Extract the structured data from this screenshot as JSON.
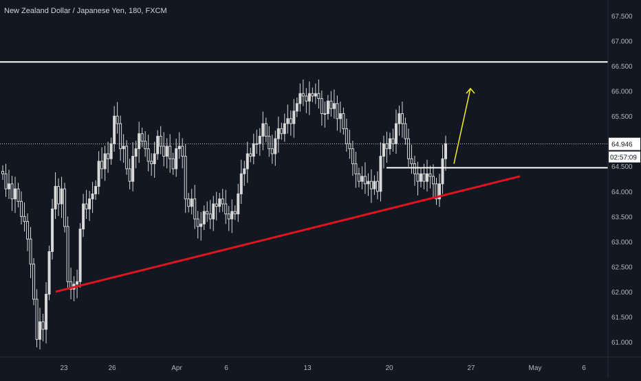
{
  "header": {
    "title": "New Zealand Dollar / Japanese Yen, 180, FXCM"
  },
  "theme": {
    "background": "#131722",
    "candle_color": "#d8d8d8",
    "axis_text": "#b2b5be",
    "support_line_color": "#e0141e",
    "target_arrow_color": "#f2ef2a",
    "level_line_color": "#ffffff"
  },
  "chart_data": {
    "type": "candlestick",
    "title": "New Zealand Dollar / Japanese Yen, 180, FXCM",
    "ylim": [
      60.75,
      67.75
    ],
    "y_ticks": [
      "61.000",
      "61.500",
      "62.000",
      "62.500",
      "63.000",
      "63.500",
      "64.000",
      "64.500",
      "65.000",
      "65.500",
      "66.000",
      "66.500",
      "67.000",
      "67.500"
    ],
    "x_ticks": [
      "23",
      "26",
      "Apr",
      "6",
      "13",
      "20",
      "27",
      "May",
      "6"
    ],
    "last_price": "64.946",
    "countdown": "02:57:09",
    "closes": [
      64.35,
      64.05,
      64.15,
      63.85,
      64.05,
      63.8,
      63.5,
      63.4,
      63.05,
      62.55,
      61.85,
      61.05,
      61.4,
      61.25,
      61.95,
      62.8,
      63.65,
      64.1,
      63.75,
      64.05,
      63.3,
      62.2,
      62.05,
      62.15,
      62.2,
      63.25,
      63.75,
      63.65,
      63.85,
      63.95,
      64.1,
      64.6,
      64.45,
      64.75,
      64.65,
      64.95,
      65.5,
      65.35,
      64.85,
      64.9,
      64.45,
      64.2,
      64.7,
      64.85,
      65.15,
      65.0,
      64.85,
      64.6,
      64.55,
      64.75,
      65.1,
      64.9,
      64.7,
      64.9,
      64.65,
      64.45,
      64.85,
      64.9,
      64.7,
      63.85,
      63.7,
      63.85,
      63.45,
      63.3,
      63.35,
      63.6,
      63.55,
      63.45,
      63.75,
      63.7,
      63.85,
      63.75,
      63.55,
      63.45,
      63.6,
      63.55,
      63.95,
      64.35,
      64.45,
      64.75,
      64.7,
      64.95,
      64.95,
      65.1,
      65.35,
      65.1,
      64.85,
      64.75,
      65.05,
      65.25,
      65.15,
      65.35,
      65.45,
      65.35,
      65.6,
      65.75,
      65.95,
      65.9,
      65.8,
      65.95,
      65.9,
      65.95,
      65.85,
      65.55,
      65.55,
      65.8,
      65.65,
      65.75,
      65.45,
      65.55,
      65.25,
      64.95,
      64.85,
      64.55,
      64.35,
      64.2,
      64.3,
      64.15,
      64.2,
      64.05,
      64.2,
      64.0,
      64.7,
      64.95,
      64.85,
      65.05,
      64.95,
      65.35,
      65.55,
      65.35,
      65.05,
      64.65,
      64.55,
      64.35,
      64.2,
      64.35,
      64.2,
      64.35,
      64.3,
      64.15,
      63.85,
      64.15,
      64.65,
      64.95
    ],
    "annotations": {
      "resistance_level": 66.58,
      "broken_level": 64.47,
      "support_trendline": {
        "from": [
          62.0,
          61.83
        ],
        "to": [
          64.3,
          64.25
        ]
      },
      "target_arrow": {
        "from": 64.55,
        "to": 66.05
      }
    }
  }
}
